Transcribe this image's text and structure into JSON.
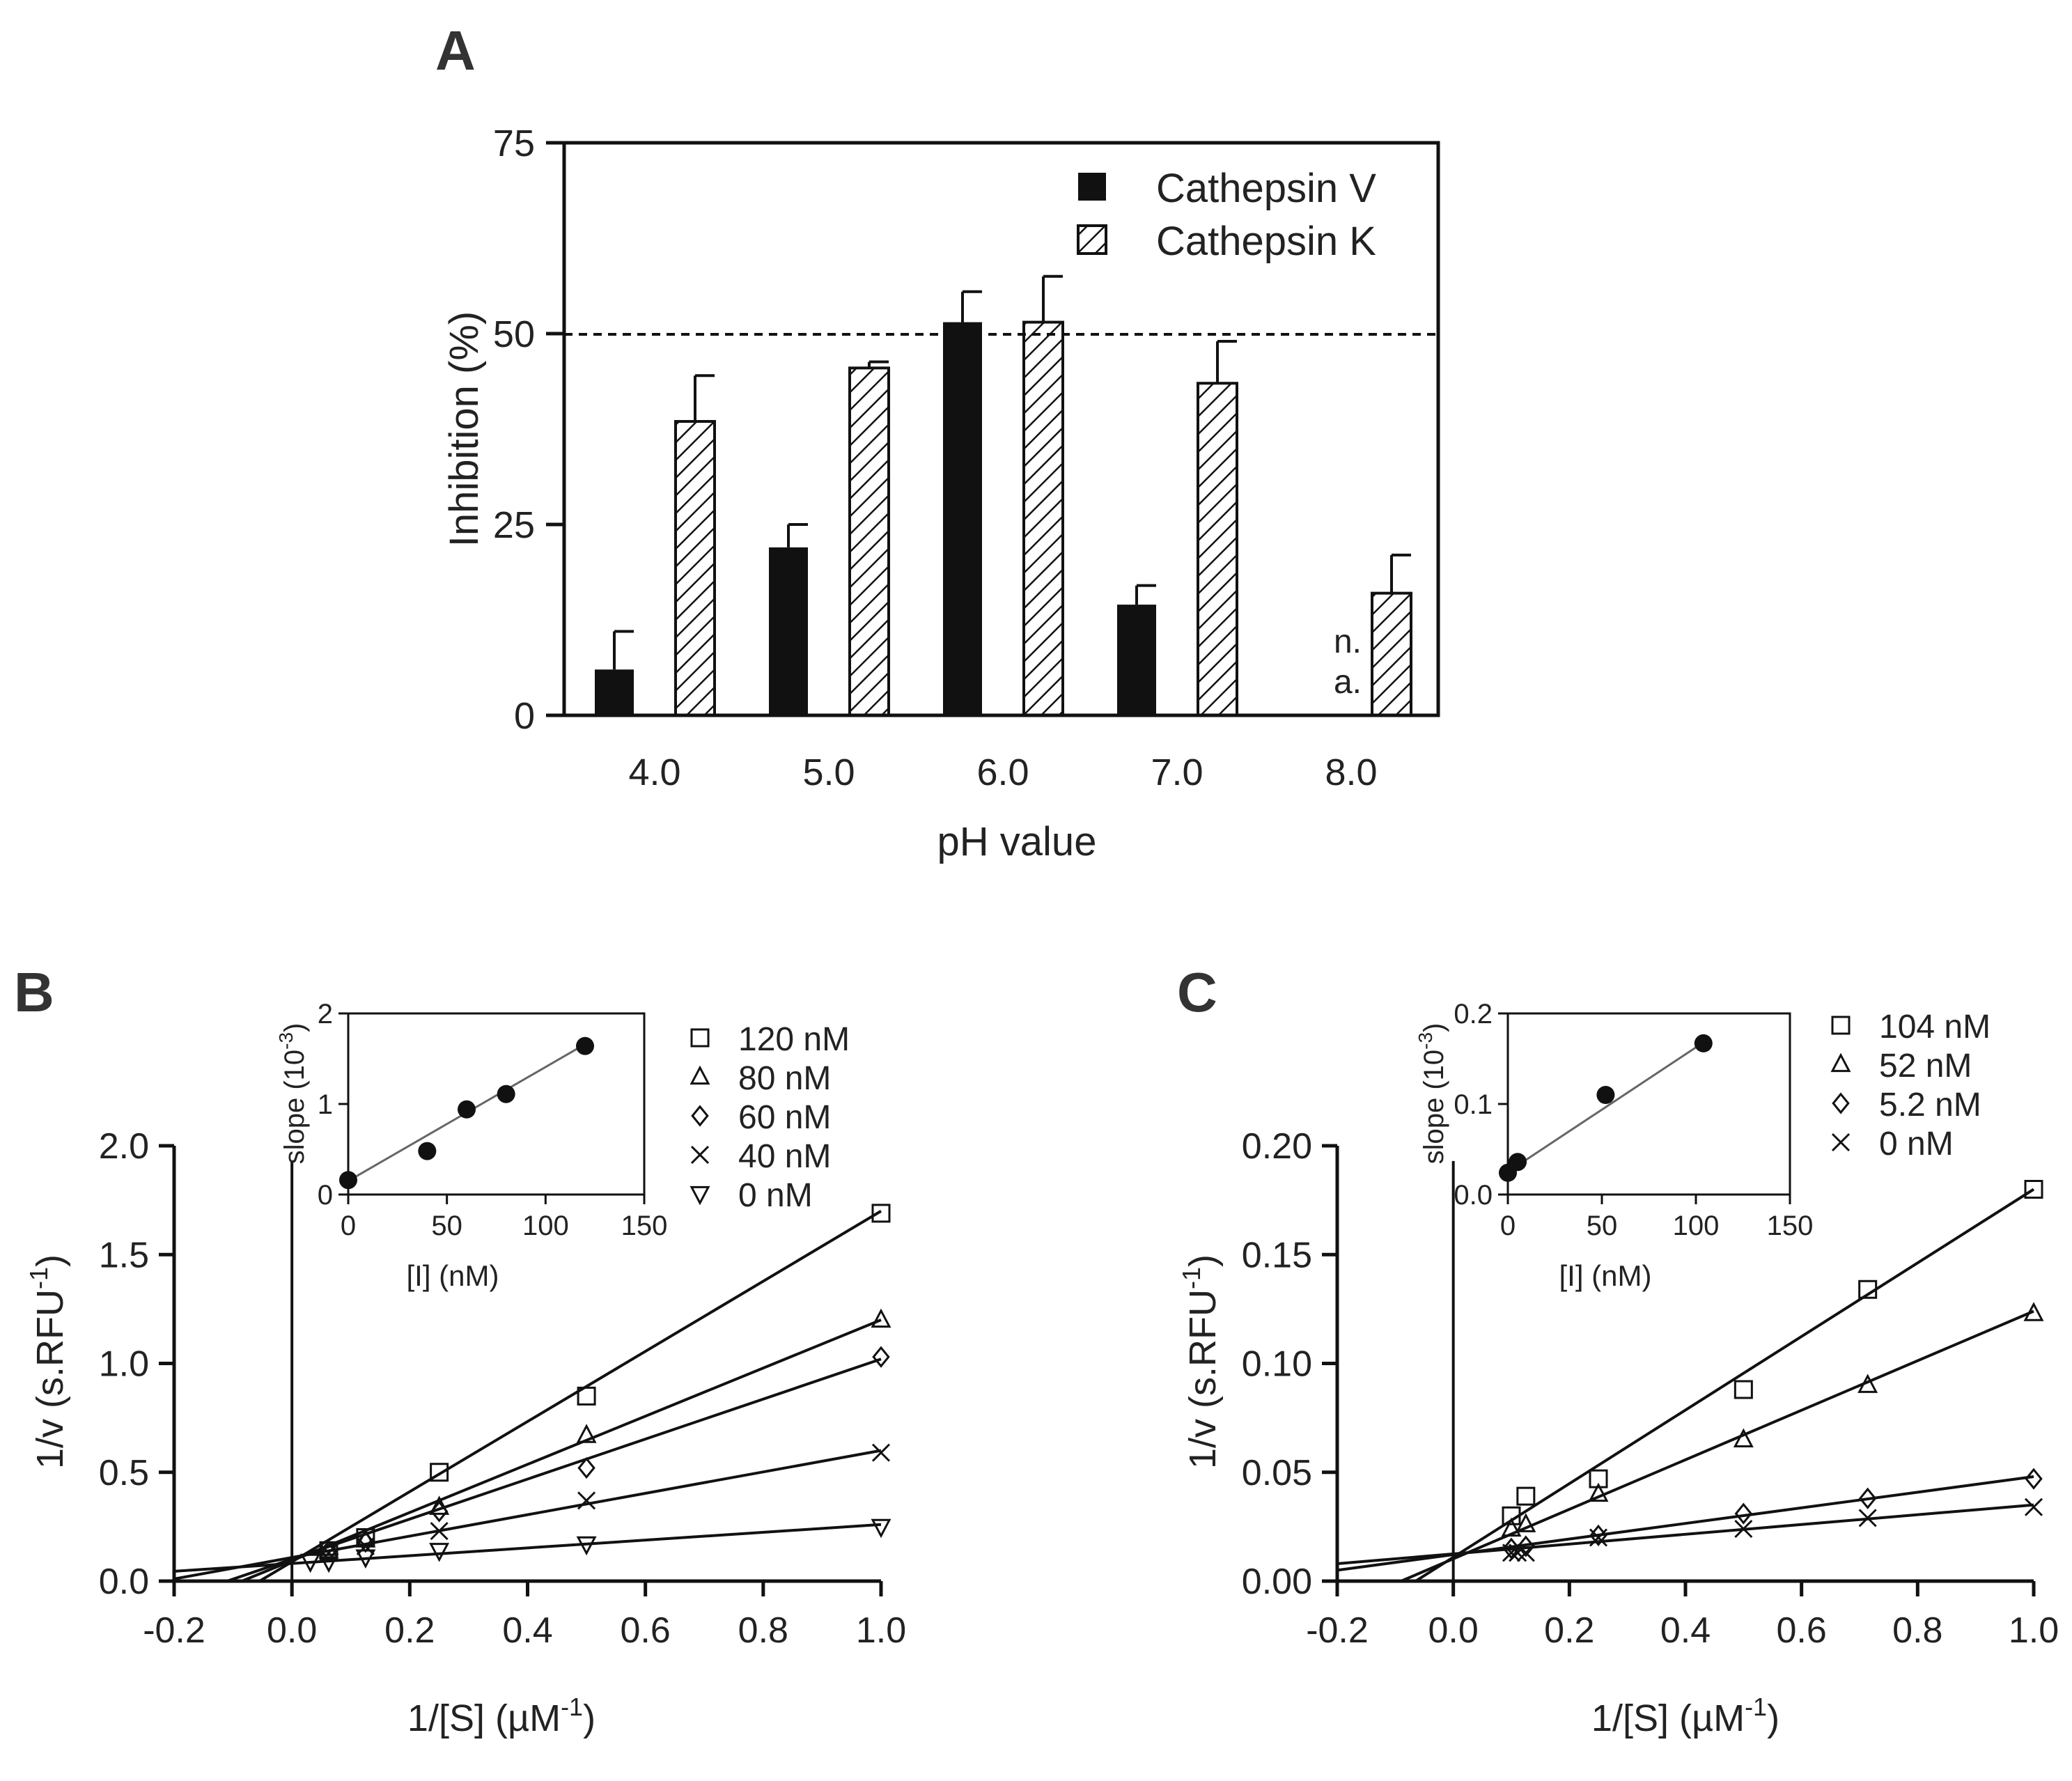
{
  "chart_data": [
    {
      "id": "A",
      "type": "bar",
      "panel_label": "A",
      "title": "",
      "xlabel": "pH value",
      "ylabel": "Inhibition (%)",
      "ylim": [
        0,
        75
      ],
      "yticks": [
        "0",
        "25",
        "50",
        "75"
      ],
      "categories": [
        "4.0",
        "5.0",
        "6.0",
        "7.0",
        "8.0"
      ],
      "series": [
        {
          "name": "Cathepsin V",
          "style": "solid",
          "values": [
            6,
            22,
            51.5,
            14.5,
            null
          ],
          "errors": [
            5,
            3,
            4,
            2.5,
            null
          ]
        },
        {
          "name": "Cathepsin K",
          "style": "hatched",
          "values": [
            38.5,
            45.5,
            51.5,
            43.5,
            16
          ],
          "errors": [
            6,
            0.8,
            6,
            5.5,
            5
          ]
        }
      ],
      "reference_line": 50,
      "annotation": {
        "category": "8.0",
        "lines": [
          "n.",
          "a."
        ]
      },
      "legend_position": "top-right"
    },
    {
      "id": "B",
      "type": "scatter",
      "panel_label": "B",
      "xlabel": "1/[S] (µM",
      "xlabel_sup": "-1",
      "xlabel_end": ")",
      "ylabel": "1/v (s.RFU",
      "ylabel_sup": "-1",
      "ylabel_end": ")",
      "xlim": [
        -0.2,
        1.0
      ],
      "ylim": [
        0,
        2.0
      ],
      "xticks": [
        "-0.2",
        "0.0",
        "0.2",
        "0.4",
        "0.6",
        "0.8",
        "1.0"
      ],
      "yticks": [
        "0.0",
        "0.5",
        "1.0",
        "1.5",
        "2.0"
      ],
      "legend_position": "top-right",
      "series": [
        {
          "name": "120 nM",
          "marker": "square",
          "x": [
            0.0625,
            0.125,
            0.25,
            0.5,
            1.0
          ],
          "y": [
            0.14,
            0.2,
            0.5,
            0.85,
            1.69
          ]
        },
        {
          "name": "80 nM",
          "marker": "triangle",
          "x": [
            0.0625,
            0.125,
            0.25,
            0.5,
            1.0
          ],
          "y": [
            0.14,
            0.19,
            0.34,
            0.67,
            1.2
          ]
        },
        {
          "name": "60 nM",
          "marker": "diamond",
          "x": [
            0.0625,
            0.125,
            0.25,
            0.5,
            1.0
          ],
          "y": [
            0.14,
            0.18,
            0.32,
            0.52,
            1.03
          ]
        },
        {
          "name": "40 nM",
          "marker": "cross",
          "x": [
            0.0625,
            0.125,
            0.25,
            0.5,
            1.0
          ],
          "y": [
            0.13,
            0.16,
            0.23,
            0.37,
            0.59
          ]
        },
        {
          "name": "0 nM",
          "marker": "triangle-down",
          "x": [
            0.03125,
            0.0625,
            0.125,
            0.25,
            0.5,
            1.0
          ],
          "y": [
            0.09,
            0.09,
            0.11,
            0.14,
            0.17,
            0.25
          ]
        }
      ],
      "fit_lines": [
        {
          "x": [
            -0.055,
            1.0
          ],
          "y": [
            0.0,
            1.7
          ]
        },
        {
          "x": [
            -0.085,
            1.0
          ],
          "y": [
            0.0,
            1.2
          ]
        },
        {
          "x": [
            -0.11,
            1.0
          ],
          "y": [
            0.0,
            1.02
          ]
        },
        {
          "x": [
            -0.2,
            1.0
          ],
          "y": [
            0.01,
            0.6
          ]
        },
        {
          "x": [
            -0.2,
            1.0
          ],
          "y": [
            0.045,
            0.26
          ]
        }
      ],
      "inset": {
        "type": "scatter",
        "xlabel": "[I] (nM)",
        "ylabel": "slope (10",
        "ylabel_sup": "-3",
        "ylabel_end": ")",
        "xlim": [
          0,
          150
        ],
        "ylim": [
          0,
          2
        ],
        "xticks": [
          "0",
          "50",
          "100",
          "150"
        ],
        "yticks": [
          "0",
          "1",
          "2"
        ],
        "x": [
          0,
          40,
          60,
          80,
          120
        ],
        "y": [
          0.16,
          0.48,
          0.94,
          1.11,
          1.64
        ],
        "fit": {
          "x": [
            0,
            120
          ],
          "y": [
            0.15,
            1.66
          ]
        }
      }
    },
    {
      "id": "C",
      "type": "scatter",
      "panel_label": "C",
      "xlabel": "1/[S] (µM",
      "xlabel_sup": "-1",
      "xlabel_end": ")",
      "ylabel": "1/v (s.RFU",
      "ylabel_sup": "-1",
      "ylabel_end": ")",
      "xlim": [
        -0.2,
        1.0
      ],
      "ylim": [
        0,
        0.2
      ],
      "xticks": [
        "-0.2",
        "0.0",
        "0.2",
        "0.4",
        "0.6",
        "0.8",
        "1.0"
      ],
      "yticks": [
        "0.00",
        "0.05",
        "0.10",
        "0.15",
        "0.20"
      ],
      "legend_position": "top-right",
      "series": [
        {
          "name": "104 nM",
          "marker": "square",
          "x": [
            0.1,
            0.125,
            0.25,
            0.5,
            0.714,
            1.0
          ],
          "y": [
            0.03,
            0.039,
            0.047,
            0.088,
            0.134,
            0.18
          ]
        },
        {
          "name": "52 nM",
          "marker": "triangle",
          "x": [
            0.1,
            0.125,
            0.25,
            0.5,
            0.714,
            1.0
          ],
          "y": [
            0.024,
            0.026,
            0.04,
            0.065,
            0.09,
            0.123
          ]
        },
        {
          "name": "5.2 nM",
          "marker": "diamond",
          "x": [
            0.1,
            0.125,
            0.25,
            0.5,
            0.714,
            1.0
          ],
          "y": [
            0.015,
            0.016,
            0.021,
            0.031,
            0.038,
            0.047
          ]
        },
        {
          "name": "0 nM",
          "marker": "cross",
          "x": [
            0.1,
            0.111,
            0.125,
            0.25,
            0.5,
            0.714,
            1.0
          ],
          "y": [
            0.013,
            0.013,
            0.013,
            0.02,
            0.024,
            0.029,
            0.034
          ]
        }
      ],
      "fit_lines": [
        {
          "x": [
            -0.065,
            1.0
          ],
          "y": [
            0.0,
            0.18
          ]
        },
        {
          "x": [
            -0.09,
            1.0
          ],
          "y": [
            0.0,
            0.124
          ]
        },
        {
          "x": [
            -0.2,
            1.0
          ],
          "y": [
            0.005,
            0.048
          ]
        },
        {
          "x": [
            -0.2,
            1.0
          ],
          "y": [
            0.008,
            0.035
          ]
        }
      ],
      "inset": {
        "type": "scatter",
        "xlabel": "[I] (nM)",
        "ylabel": "slope (10",
        "ylabel_sup": "-3",
        "ylabel_end": ")",
        "xlim": [
          0,
          150
        ],
        "ylim": [
          0,
          0.2
        ],
        "xticks": [
          "0",
          "50",
          "100",
          "150"
        ],
        "yticks": [
          "0.0",
          "0.1",
          "0.2"
        ],
        "x": [
          0,
          5.2,
          52,
          104
        ],
        "y": [
          0.024,
          0.036,
          0.11,
          0.167
        ],
        "fit": {
          "x": [
            0,
            104
          ],
          "y": [
            0.025,
            0.168
          ]
        }
      }
    }
  ]
}
